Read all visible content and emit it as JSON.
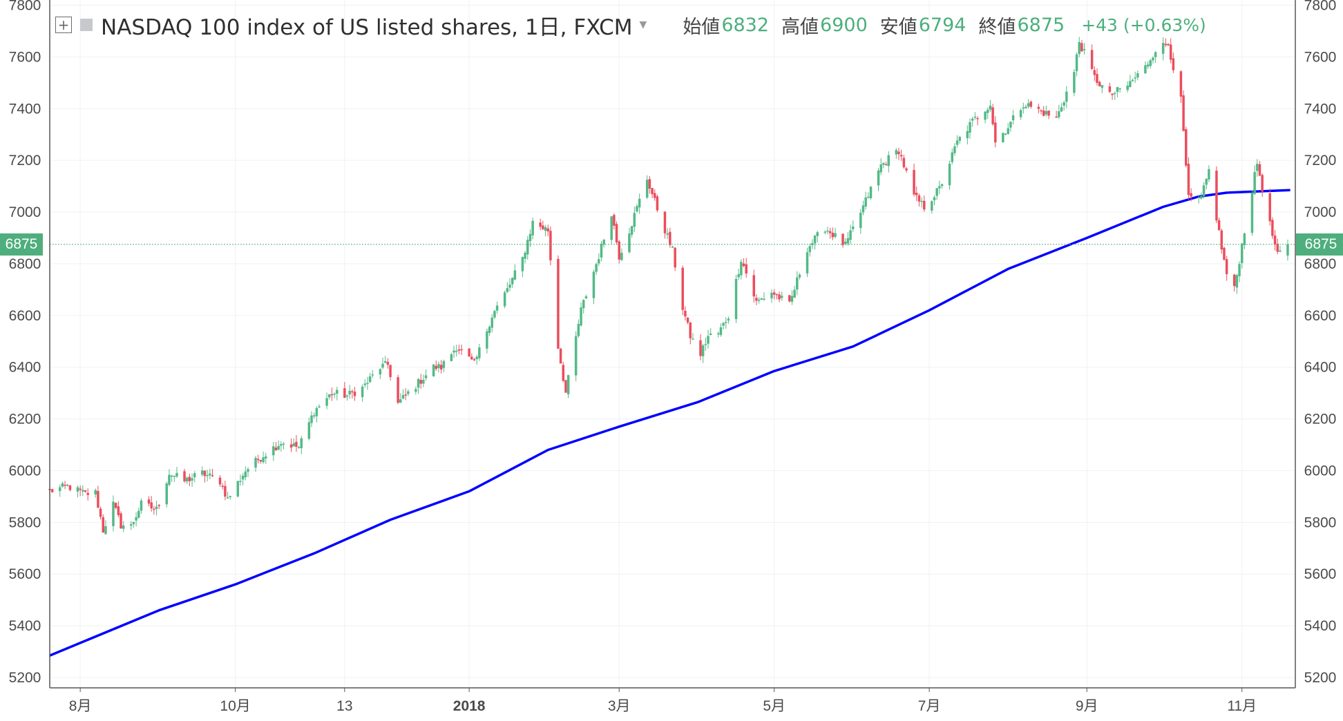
{
  "legend": {
    "title": "NASDAQ 100 index of US listed shares, 1日, FXCM",
    "open_label": "始値",
    "open": "6832",
    "high_label": "高値",
    "high": "6900",
    "low_label": "安値",
    "low": "6794",
    "close_label": "終値",
    "close": "6875",
    "change": "+43 (+0.63%)",
    "icons": [
      "expand-plus-icon",
      "symbol-flag-icon",
      "chevron-down-icon"
    ]
  },
  "colors": {
    "up": "#53b987",
    "down": "#eb4d5c",
    "ma_line": "#0000ff",
    "price_tag": "#4fae7d",
    "grid": "#eef1f3"
  },
  "chart_data": {
    "type": "candlestick",
    "title": "NASDAQ 100 index of US listed shares, 1日, FXCM",
    "y_ticks": [
      5200,
      5400,
      5600,
      5800,
      6000,
      6200,
      6400,
      6600,
      6800,
      7000,
      7200,
      7400,
      7600,
      7800
    ],
    "y_tick_labels": [
      "5200",
      "5400",
      "5600",
      "5800",
      "6000",
      "6200",
      "6400",
      "6600",
      "6800",
      "7000",
      "7200",
      "7400",
      "7600",
      "7800"
    ],
    "ylim": [
      5160,
      7820
    ],
    "x_ticks": [
      {
        "label": "8月",
        "date": "2017-08-01"
      },
      {
        "label": "10月",
        "date": "2017-10-01"
      },
      {
        "label": "13",
        "date": "2017-11-13"
      },
      {
        "label": "2018",
        "date": "2018-01-01"
      },
      {
        "label": "3月",
        "date": "2018-03-01"
      },
      {
        "label": "5月",
        "date": "2018-05-01"
      },
      {
        "label": "7月",
        "date": "2018-07-01"
      },
      {
        "label": "9月",
        "date": "2018-09-01"
      },
      {
        "label": "11月",
        "date": "2018-11-01"
      }
    ],
    "x_range": [
      "2017-07-20",
      "2018-11-22"
    ],
    "grid": true,
    "last_price": 6875,
    "last_price_label": "6875",
    "close_points": [
      [
        "2017-07-20",
        5920
      ],
      [
        "2017-07-27",
        5940
      ],
      [
        "2017-08-03",
        5910
      ],
      [
        "2017-08-07",
        5915
      ],
      [
        "2017-08-10",
        5770
      ],
      [
        "2017-08-14",
        5870
      ],
      [
        "2017-08-17",
        5790
      ],
      [
        "2017-08-21",
        5785
      ],
      [
        "2017-08-25",
        5870
      ],
      [
        "2017-08-31",
        5850
      ],
      [
        "2017-09-05",
        5990
      ],
      [
        "2017-09-11",
        5960
      ],
      [
        "2017-09-18",
        5990
      ],
      [
        "2017-09-25",
        5960
      ],
      [
        "2017-09-28",
        5890
      ],
      [
        "2017-10-05",
        6000
      ],
      [
        "2017-10-12",
        6060
      ],
      [
        "2017-10-19",
        6110
      ],
      [
        "2017-10-26",
        6090
      ],
      [
        "2017-11-01",
        6230
      ],
      [
        "2017-11-08",
        6300
      ],
      [
        "2017-11-14",
        6290
      ],
      [
        "2017-11-20",
        6320
      ],
      [
        "2017-11-27",
        6400
      ],
      [
        "2017-11-30",
        6410
      ],
      [
        "2017-12-04",
        6260
      ],
      [
        "2017-12-11",
        6330
      ],
      [
        "2017-12-18",
        6400
      ],
      [
        "2017-12-21",
        6400
      ],
      [
        "2017-12-27",
        6480
      ],
      [
        "2018-01-03",
        6410
      ],
      [
        "2018-01-10",
        6600
      ],
      [
        "2018-01-16",
        6700
      ],
      [
        "2018-01-22",
        6820
      ],
      [
        "2018-01-26",
        6960
      ],
      [
        "2018-01-30",
        6940
      ],
      [
        "2018-02-01",
        6930
      ],
      [
        "2018-02-05",
        6480
      ],
      [
        "2018-02-08",
        6300
      ],
      [
        "2018-02-14",
        6620
      ],
      [
        "2018-02-21",
        6830
      ],
      [
        "2018-02-26",
        7000
      ],
      [
        "2018-03-01",
        6830
      ],
      [
        "2018-03-05",
        6930
      ],
      [
        "2018-03-12",
        7130
      ],
      [
        "2018-03-15",
        7040
      ],
      [
        "2018-03-22",
        6850
      ],
      [
        "2018-03-26",
        6630
      ],
      [
        "2018-03-29",
        6520
      ],
      [
        "2018-04-02",
        6450
      ],
      [
        "2018-04-05",
        6520
      ],
      [
        "2018-04-09",
        6530
      ],
      [
        "2018-04-13",
        6600
      ],
      [
        "2018-04-18",
        6820
      ],
      [
        "2018-04-24",
        6650
      ],
      [
        "2018-04-30",
        6690
      ],
      [
        "2018-05-07",
        6640
      ],
      [
        "2018-05-14",
        6860
      ],
      [
        "2018-05-21",
        6940
      ],
      [
        "2018-05-29",
        6870
      ],
      [
        "2018-06-05",
        7020
      ],
      [
        "2018-06-12",
        7180
      ],
      [
        "2018-06-19",
        7240
      ],
      [
        "2018-06-25",
        7060
      ],
      [
        "2018-06-29",
        7020
      ],
      [
        "2018-07-05",
        7090
      ],
      [
        "2018-07-12",
        7270
      ],
      [
        "2018-07-18",
        7350
      ],
      [
        "2018-07-25",
        7420
      ],
      [
        "2018-07-27",
        7270
      ],
      [
        "2018-08-01",
        7330
      ],
      [
        "2018-08-07",
        7420
      ],
      [
        "2018-08-14",
        7390
      ],
      [
        "2018-08-20",
        7360
      ],
      [
        "2018-08-27",
        7540
      ],
      [
        "2018-08-29",
        7660
      ],
      [
        "2018-09-04",
        7520
      ],
      [
        "2018-09-10",
        7450
      ],
      [
        "2018-09-17",
        7490
      ],
      [
        "2018-09-24",
        7560
      ],
      [
        "2018-09-28",
        7630
      ],
      [
        "2018-10-03",
        7650
      ],
      [
        "2018-10-08",
        7430
      ],
      [
        "2018-10-11",
        7050
      ],
      [
        "2018-10-16",
        7050
      ],
      [
        "2018-10-19",
        7160
      ],
      [
        "2018-10-24",
        6860
      ],
      [
        "2018-10-26",
        6760
      ],
      [
        "2018-10-29",
        6700
      ],
      [
        "2018-11-02",
        6930
      ],
      [
        "2018-11-07",
        7190
      ],
      [
        "2018-11-12",
        6950
      ],
      [
        "2018-11-15",
        6830
      ],
      [
        "2018-11-19",
        6875
      ]
    ],
    "ma_points": [
      [
        "2017-07-20",
        5285
      ],
      [
        "2017-09-01",
        5460
      ],
      [
        "2017-10-01",
        5560
      ],
      [
        "2017-11-01",
        5680
      ],
      [
        "2017-12-01",
        5810
      ],
      [
        "2018-01-01",
        5920
      ],
      [
        "2018-02-01",
        6080
      ],
      [
        "2018-03-01",
        6170
      ],
      [
        "2018-04-01",
        6265
      ],
      [
        "2018-05-01",
        6385
      ],
      [
        "2018-06-01",
        6480
      ],
      [
        "2018-07-01",
        6620
      ],
      [
        "2018-08-01",
        6780
      ],
      [
        "2018-09-01",
        6900
      ],
      [
        "2018-10-01",
        7020
      ],
      [
        "2018-10-15",
        7060
      ],
      [
        "2018-10-26",
        7075
      ],
      [
        "2018-11-20",
        7085
      ]
    ]
  }
}
